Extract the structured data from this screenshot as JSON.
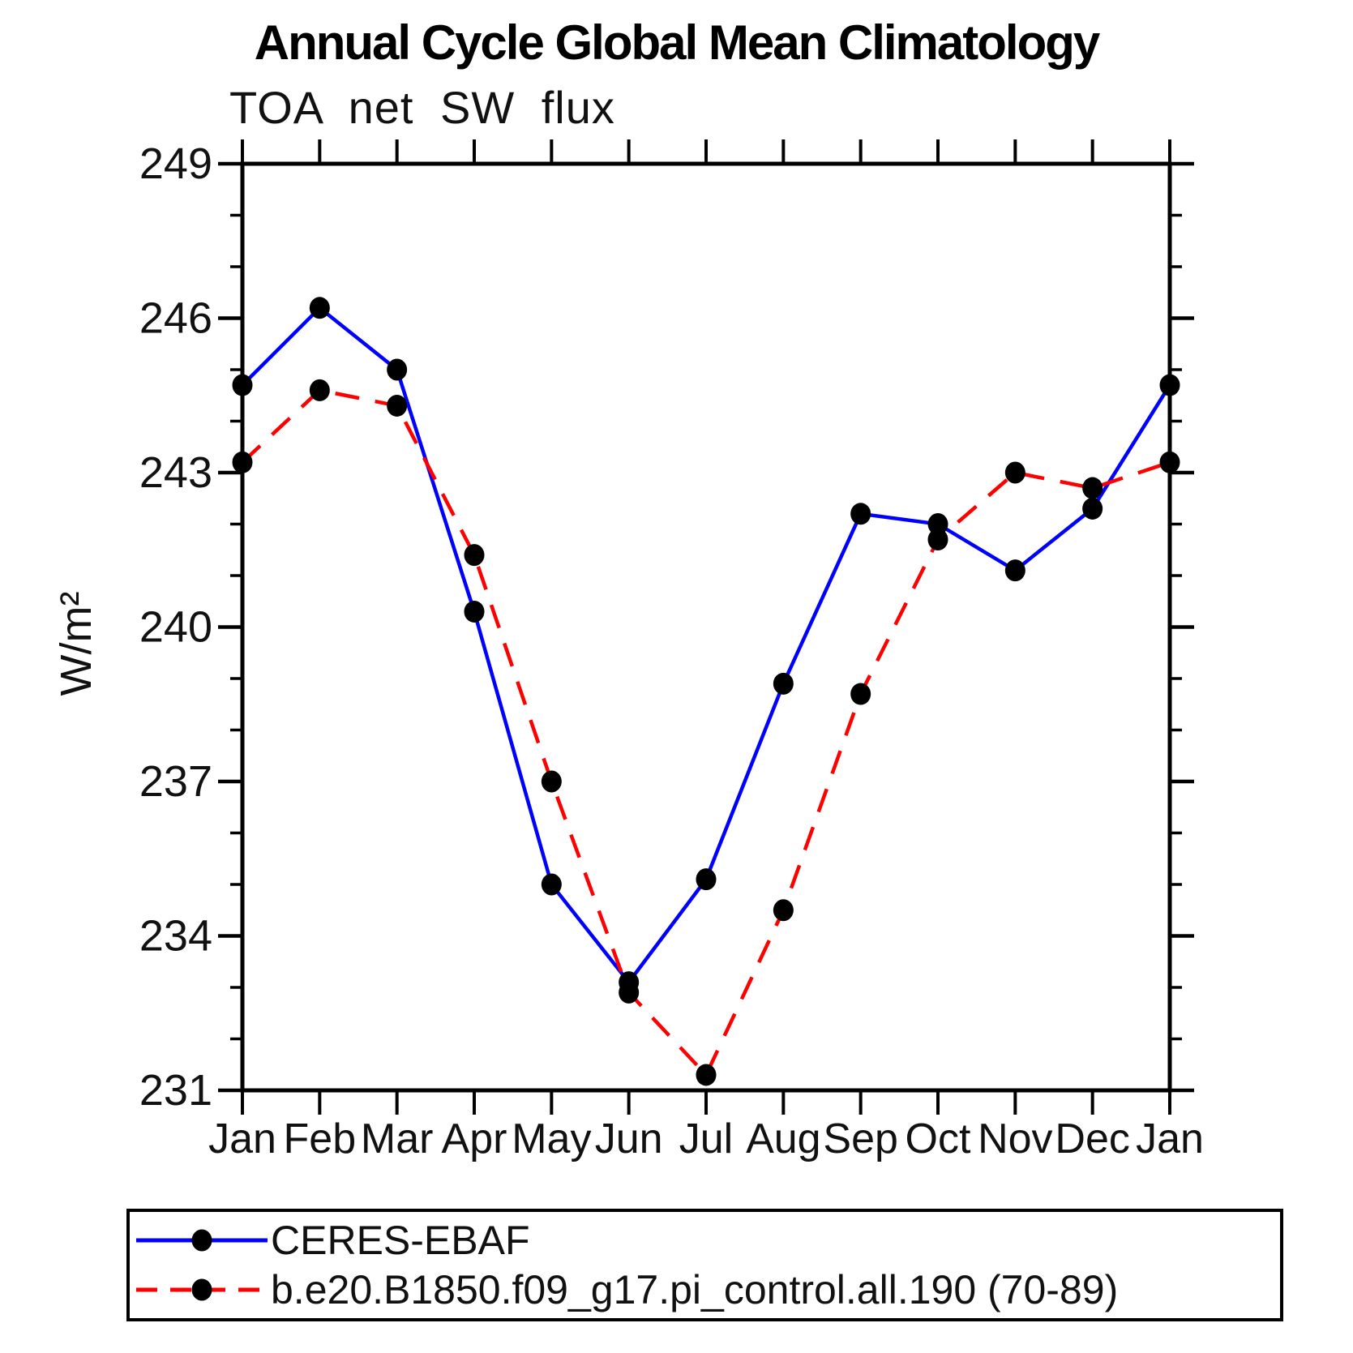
{
  "chart_data": {
    "type": "line",
    "title": "Annual Cycle Global Mean Climatology",
    "subtitle": "TOA net SW flux",
    "ylabel": "W/m²",
    "ylim": [
      231,
      249
    ],
    "y_major_ticks": [
      231,
      234,
      237,
      240,
      243,
      246,
      249
    ],
    "y_minor_step": 1,
    "grid": false,
    "legend_position": "bottom",
    "categories": [
      "Jan",
      "Feb",
      "Mar",
      "Apr",
      "May",
      "Jun",
      "Jul",
      "Aug",
      "Sep",
      "Oct",
      "Nov",
      "Dec",
      "Jan"
    ],
    "series": [
      {
        "name": "CERES-EBAF",
        "color": "#0000ff",
        "style": "solid",
        "values": [
          244.7,
          246.2,
          245.0,
          240.3,
          235.0,
          233.1,
          235.1,
          238.9,
          242.2,
          242.0,
          241.1,
          242.3,
          244.7
        ]
      },
      {
        "name": "b.e20.B1850.f09_g17.pi_control.all.190 (70-89)",
        "color": "#ff0000",
        "style": "dashed",
        "values": [
          243.2,
          244.6,
          244.3,
          241.4,
          237.0,
          232.9,
          231.3,
          234.5,
          238.7,
          241.7,
          243.0,
          242.7,
          243.2
        ]
      }
    ],
    "marker_color": "#000000",
    "axis_color": "#000000"
  }
}
